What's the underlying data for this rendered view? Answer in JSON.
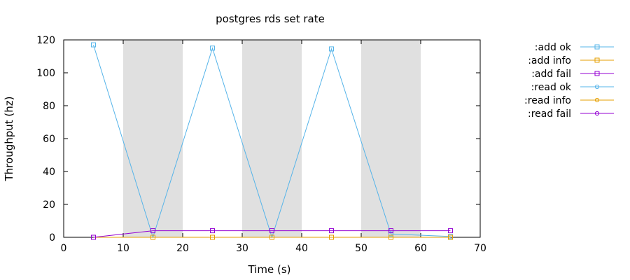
{
  "chart_data": {
    "type": "line",
    "title": "postgres rds set rate",
    "xlabel": "Time (s)",
    "ylabel": "Throughput (hz)",
    "xlim": [
      0,
      70
    ],
    "ylim": [
      0,
      120
    ],
    "xticks": [
      0,
      10,
      20,
      30,
      40,
      50,
      60,
      70
    ],
    "yticks": [
      0,
      20,
      40,
      60,
      80,
      100,
      120
    ],
    "grid": false,
    "legend_position": "right-outside",
    "shaded_intervals": [
      [
        10,
        20
      ],
      [
        30,
        40
      ],
      [
        50,
        60
      ]
    ],
    "shade_color": "#e0e0e0",
    "series": [
      {
        "name": ":add ok",
        "color": "#56b4e9",
        "marker": "square",
        "x": [
          5,
          15,
          25,
          35,
          45,
          55,
          65
        ],
        "y": [
          117,
          0,
          115,
          0,
          114.5,
          2,
          0.5
        ]
      },
      {
        "name": ":add info",
        "color": "#e69f00",
        "marker": "square",
        "x": [
          5,
          15,
          25,
          35,
          45,
          55,
          65
        ],
        "y": [
          0,
          0,
          0,
          0,
          0,
          0,
          0
        ]
      },
      {
        "name": ":add fail",
        "color": "#9400d3",
        "marker": "square",
        "x": [
          5,
          15,
          25,
          35,
          45,
          55,
          65
        ],
        "y": [
          0,
          4,
          4,
          4,
          4,
          4,
          4
        ]
      },
      {
        "name": ":read ok",
        "color": "#56b4e9",
        "marker": "circle",
        "x": [],
        "y": []
      },
      {
        "name": ":read info",
        "color": "#e69f00",
        "marker": "circle",
        "x": [],
        "y": []
      },
      {
        "name": ":read fail",
        "color": "#9400d3",
        "marker": "circle",
        "x": [],
        "y": []
      }
    ]
  }
}
